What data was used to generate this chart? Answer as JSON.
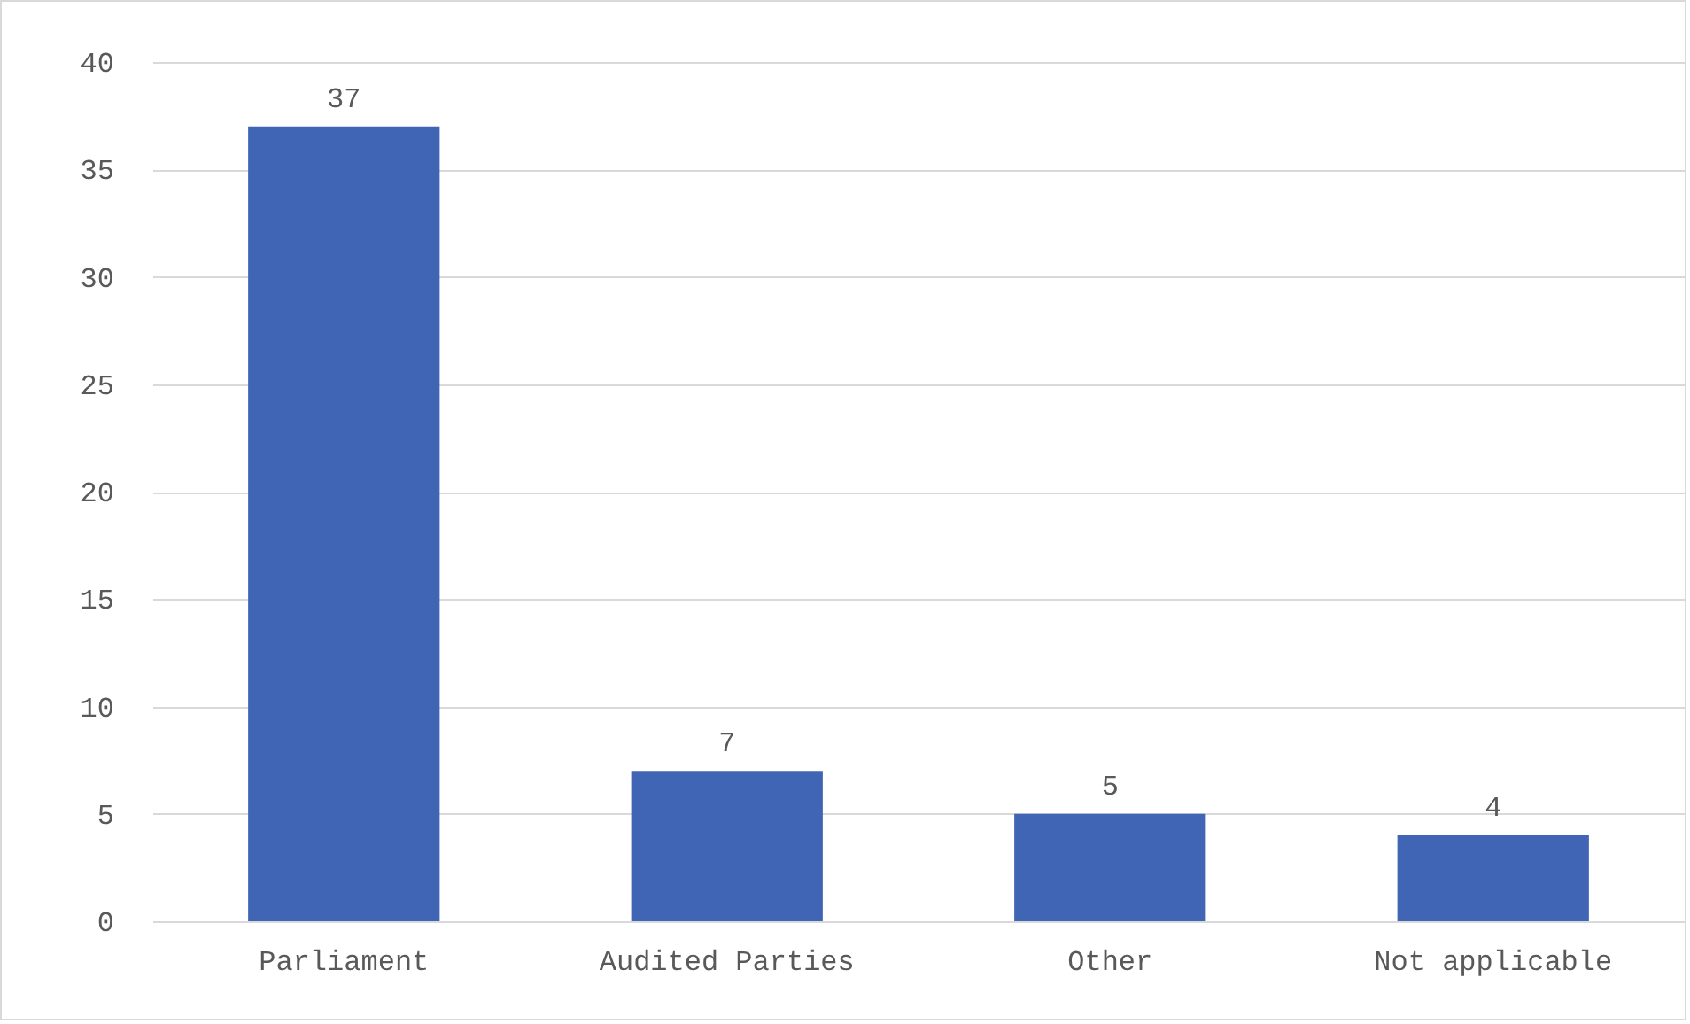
{
  "chart_data": {
    "type": "bar",
    "categories": [
      "Parliament",
      "Audited Parties",
      "Other",
      "Not applicable"
    ],
    "values": [
      37,
      7,
      5,
      4
    ],
    "color": "#4165b5",
    "ylim": [
      0,
      40
    ],
    "yticks": [
      0,
      5,
      10,
      15,
      20,
      25,
      30,
      35,
      40
    ],
    "grid": "y",
    "data_labels": true
  }
}
